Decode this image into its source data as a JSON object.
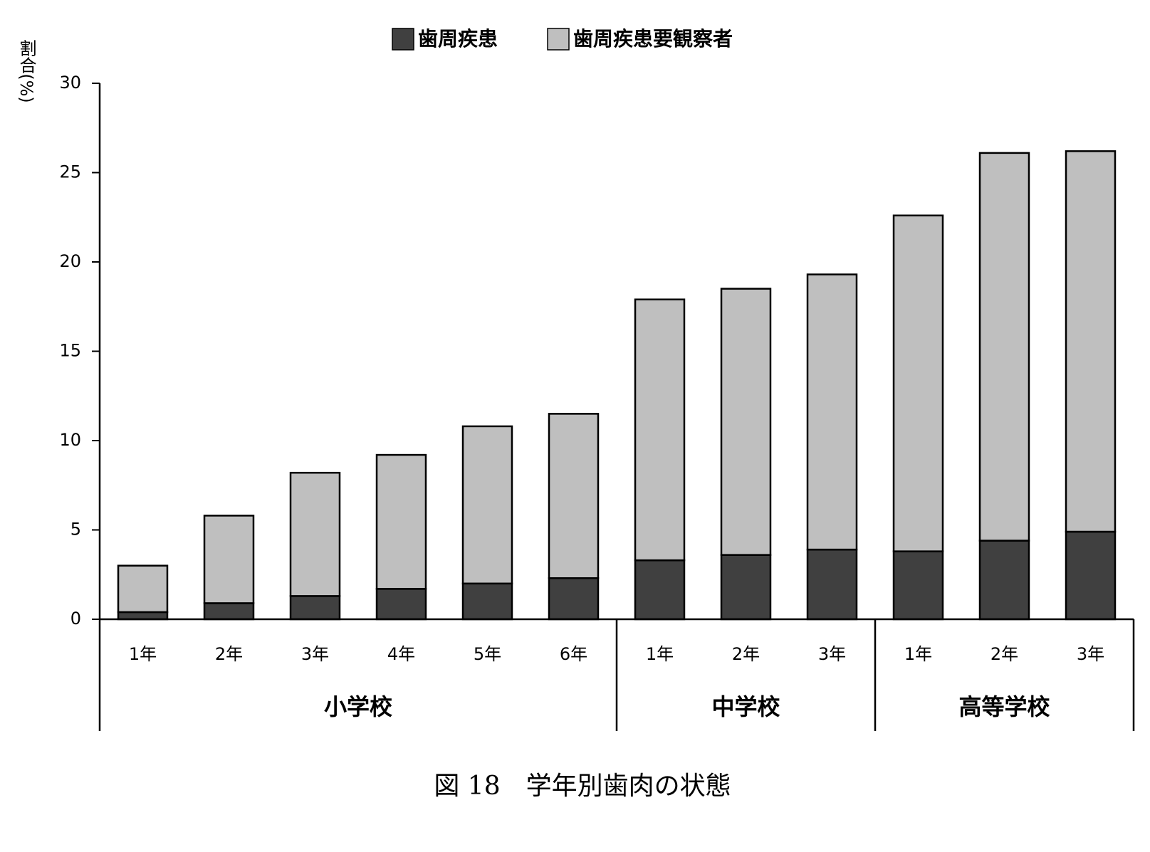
{
  "chart_data": {
    "type": "stacked-bar",
    "caption": "図 18　学年別歯肉の状態",
    "y_label": "割合(%)",
    "groups": [
      {
        "name": "小学校",
        "categories": [
          "1年",
          "2年",
          "3年",
          "4年",
          "5年",
          "6年"
        ]
      },
      {
        "name": "中学校",
        "categories": [
          "1年",
          "2年",
          "3年"
        ]
      },
      {
        "name": "高等学校",
        "categories": [
          "1年",
          "2年",
          "3年"
        ]
      }
    ],
    "series": [
      {
        "name": "歯周疾患",
        "color": "#404040",
        "values": [
          0.4,
          0.9,
          1.3,
          1.7,
          2.0,
          2.3,
          3.3,
          3.6,
          3.9,
          3.8,
          4.4,
          4.9
        ]
      },
      {
        "name": "歯周疾患要観察者",
        "color": "#bfbfbf",
        "values": [
          2.6,
          4.9,
          6.9,
          7.5,
          8.8,
          9.2,
          14.6,
          14.9,
          15.4,
          18.8,
          21.7,
          21.3
        ]
      }
    ],
    "ylim": [
      0,
      30
    ],
    "yticks": [
      0,
      5,
      10,
      15,
      20,
      25,
      30
    ]
  }
}
